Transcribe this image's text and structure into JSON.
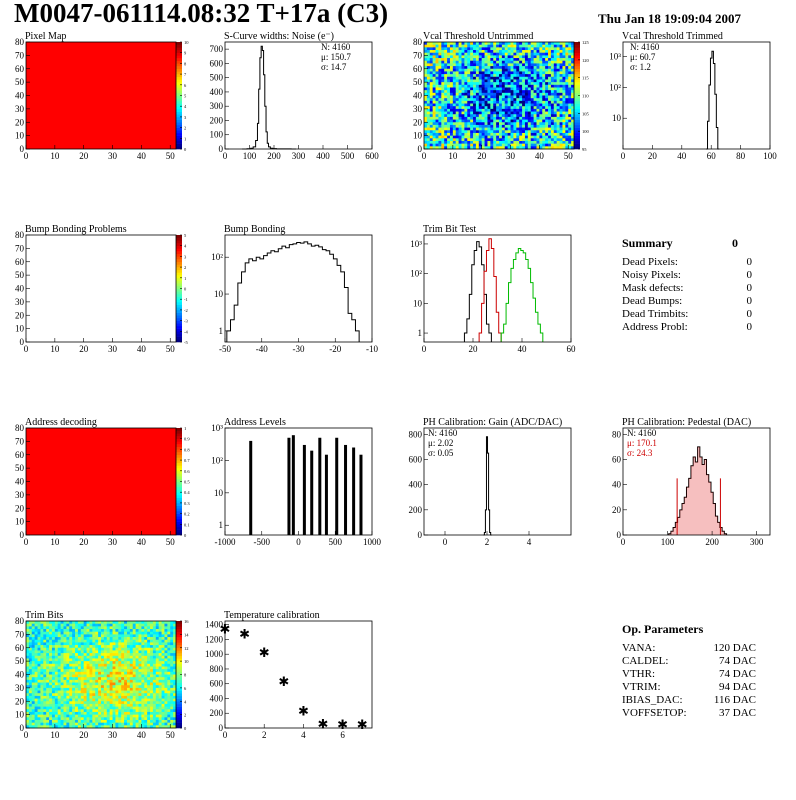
{
  "header": {
    "title": "M0047-061114.08:32 T+17a (C3)",
    "date": "Thu Jan 18 19:09:04 2007"
  },
  "chart_data": [
    {
      "id": "pixel-map",
      "type": "heatmap",
      "title": "Pixel Map",
      "pattern": "uniform",
      "fill": "#ff0000",
      "xlim": [
        0,
        52
      ],
      "ylim": [
        0,
        80
      ],
      "xticks": [
        "0",
        "10",
        "20",
        "30",
        "40",
        "50"
      ],
      "yticks": [
        "0",
        "10",
        "20",
        "30",
        "40",
        "50",
        "60",
        "70",
        "80"
      ],
      "zticks": [
        "0",
        "1",
        "2",
        "3",
        "4",
        "5",
        "6",
        "7",
        "8",
        "9",
        "10"
      ]
    },
    {
      "id": "scurve",
      "type": "histogram",
      "title": "S-Curve widths: Noise (e⁻)",
      "xlim": [
        0,
        600
      ],
      "ylim": [
        0,
        750
      ],
      "xticks": [
        "0",
        "100",
        "200",
        "300",
        "400",
        "500",
        "600"
      ],
      "yticks": [
        "0",
        "100",
        "200",
        "300",
        "400",
        "500",
        "600",
        "700"
      ],
      "stats": [
        "N: 4160",
        "μ: 150.7",
        "σ: 14.7"
      ],
      "statcolor": [
        "#000",
        "#000",
        "#000"
      ],
      "series": [
        {
          "color": "#000",
          "x": [
            80,
            100,
            110,
            120,
            130,
            135,
            140,
            145,
            150,
            155,
            160,
            165,
            170,
            175,
            180,
            190,
            200,
            220,
            260,
            280
          ],
          "values": [
            0,
            2,
            5,
            15,
            60,
            180,
            420,
            640,
            720,
            690,
            520,
            300,
            120,
            40,
            15,
            5,
            3,
            1,
            1,
            0
          ]
        }
      ]
    },
    {
      "id": "vcal-untrimmed",
      "type": "heatmap",
      "title": "Vcal Threshold Untrimmed",
      "pattern": "noise-blue",
      "xlim": [
        0,
        52
      ],
      "ylim": [
        0,
        80
      ],
      "xticks": [
        "0",
        "10",
        "20",
        "30",
        "40",
        "50"
      ],
      "yticks": [
        "0",
        "10",
        "20",
        "30",
        "40",
        "50",
        "60",
        "70",
        "80"
      ],
      "zticks": [
        "95",
        "100",
        "105",
        "110",
        "115",
        "120",
        "125"
      ]
    },
    {
      "id": "vcal-trimmed",
      "type": "histogram",
      "title": "Vcal Threshold Trimmed",
      "log": true,
      "xlim": [
        0,
        100
      ],
      "ylim": [
        1,
        3000
      ],
      "xticks": [
        "0",
        "20",
        "40",
        "60",
        "80",
        "100"
      ],
      "yticks": [
        "10",
        "10²",
        "10³"
      ],
      "yvals": [
        10,
        100,
        1000
      ],
      "stats": [
        "N: 4160",
        "μ: 60.7",
        "σ:  1.2"
      ],
      "statcolor": [
        "#000",
        "#000",
        "#000"
      ],
      "series": [
        {
          "color": "#000",
          "x": [
            57,
            58,
            59,
            60,
            61,
            62,
            63,
            64,
            65
          ],
          "values": [
            1,
            8,
            120,
            900,
            1500,
            600,
            60,
            5,
            1
          ]
        }
      ]
    },
    {
      "id": "bump-problems",
      "type": "heatmap",
      "title": "Bump Bonding Problems",
      "pattern": "blank",
      "xlim": [
        0,
        52
      ],
      "ylim": [
        0,
        80
      ],
      "xticks": [
        "0",
        "10",
        "20",
        "30",
        "40",
        "50"
      ],
      "yticks": [
        "0",
        "10",
        "20",
        "30",
        "40",
        "50",
        "60",
        "70",
        "80"
      ],
      "zticks": [
        "-5",
        "-4",
        "-3",
        "-2",
        "-1",
        "0",
        "1",
        "2",
        "3",
        "4",
        "5"
      ]
    },
    {
      "id": "bump-bonding",
      "type": "histogram",
      "title": "Bump Bonding",
      "log": true,
      "xlim": [
        -50,
        -10
      ],
      "ylim": [
        0.5,
        400
      ],
      "xticks": [
        "-50",
        "-40",
        "-30",
        "-20",
        "-10"
      ],
      "yticks": [
        "1",
        "10",
        "10²"
      ],
      "yvals": [
        1,
        10,
        100
      ],
      "stats": [],
      "statcolor": [],
      "series": [
        {
          "color": "#000",
          "x": [
            -49,
            -48,
            -47,
            -46,
            -45,
            -44,
            -43,
            -42,
            -41,
            -40,
            -39,
            -38,
            -37,
            -36,
            -35,
            -34,
            -33,
            -32,
            -31,
            -30,
            -29,
            -28,
            -27,
            -26,
            -25,
            -24,
            -23,
            -22,
            -21,
            -20,
            -19,
            -18,
            -17,
            -16,
            -15,
            -14
          ],
          "values": [
            1,
            2,
            5,
            20,
            40,
            70,
            90,
            80,
            100,
            90,
            110,
            130,
            150,
            140,
            170,
            200,
            180,
            220,
            230,
            250,
            240,
            260,
            230,
            200,
            210,
            190,
            160,
            150,
            120,
            90,
            60,
            40,
            15,
            3,
            2,
            1
          ]
        }
      ]
    },
    {
      "id": "trim-bit-test",
      "type": "histogram",
      "title": "Trim Bit Test",
      "log": true,
      "xlim": [
        0,
        60
      ],
      "ylim": [
        0.5,
        2000
      ],
      "xticks": [
        "0",
        "20",
        "40",
        "60"
      ],
      "yticks": [
        "1",
        "10",
        "10²",
        "10³"
      ],
      "yvals": [
        1,
        10,
        100,
        1000
      ],
      "stats": [],
      "statcolor": [],
      "series": [
        {
          "color": "#000",
          "x": [
            17,
            18,
            19,
            20,
            21,
            22,
            23,
            24,
            25,
            26,
            27
          ],
          "values": [
            1,
            3,
            20,
            200,
            600,
            1200,
            800,
            200,
            20,
            2,
            1
          ]
        },
        {
          "color": "#cc0000",
          "x": [
            23,
            24,
            25,
            26,
            27,
            28,
            29,
            30,
            31
          ],
          "values": [
            1,
            10,
            120,
            600,
            1500,
            700,
            80,
            5,
            1
          ]
        },
        {
          "color": "#00bb00",
          "x": [
            32,
            33,
            34,
            35,
            36,
            37,
            38,
            39,
            40,
            41,
            42,
            43,
            44,
            45,
            46,
            47,
            48
          ],
          "values": [
            1,
            2,
            10,
            50,
            150,
            300,
            500,
            700,
            600,
            500,
            300,
            150,
            50,
            15,
            5,
            2,
            1
          ]
        }
      ]
    },
    {
      "id": "address-decoding",
      "type": "heatmap",
      "title": "Address decoding",
      "pattern": "uniform",
      "fill": "#ff0000",
      "xlim": [
        0,
        52
      ],
      "ylim": [
        0,
        80
      ],
      "xticks": [
        "0",
        "10",
        "20",
        "30",
        "40",
        "50"
      ],
      "yticks": [
        "0",
        "10",
        "20",
        "30",
        "40",
        "50",
        "60",
        "70",
        "80"
      ],
      "zticks": [
        "0",
        "0.1",
        "0.2",
        "0.3",
        "0.4",
        "0.5",
        "0.6",
        "0.7",
        "0.8",
        "0.9",
        "1"
      ]
    },
    {
      "id": "address-levels",
      "type": "histogram",
      "title": "Address Levels",
      "log": true,
      "xlim": [
        -1000,
        1000
      ],
      "ylim": [
        0.5,
        1000
      ],
      "xticks": [
        "-1000",
        "-500",
        "0",
        "500",
        "1000"
      ],
      "yticks": [
        "1",
        "10",
        "10²",
        "10³"
      ],
      "yvals": [
        1,
        10,
        100,
        1000
      ],
      "stats": [],
      "statcolor": [],
      "spikes": true,
      "series": [
        {
          "color": "#000",
          "x": [
            -650,
            -130,
            -70,
            80,
            180,
            290,
            380,
            520,
            640,
            750,
            850
          ],
          "values": [
            400,
            500,
            600,
            300,
            200,
            500,
            150,
            500,
            300,
            250,
            150
          ]
        }
      ]
    },
    {
      "id": "ph-gain",
      "type": "histogram",
      "title": "PH Calibration: Gain (ADC/DAC)",
      "xlim": [
        -1,
        6
      ],
      "ylim": [
        0,
        850
      ],
      "xticks": [
        "0",
        "2",
        "4"
      ],
      "xtickvals": [
        0,
        2,
        4
      ],
      "yticks": [
        "0",
        "200",
        "400",
        "600",
        "800"
      ],
      "stats": [
        "N: 4160",
        "μ: 2.02",
        "σ: 0.05"
      ],
      "statcolor": [
        "#000",
        "#000",
        "#000"
      ],
      "series": [
        {
          "color": "#000",
          "x": [
            1.85,
            1.9,
            1.95,
            2.0,
            2.05,
            2.1,
            2.15,
            2.2
          ],
          "values": [
            0,
            20,
            200,
            780,
            650,
            200,
            20,
            0
          ]
        }
      ]
    },
    {
      "id": "ph-pedestal",
      "type": "histogram",
      "title": "PH Calibration: Pedestal (DAC)",
      "xlim": [
        0,
        330
      ],
      "ylim": [
        0,
        85
      ],
      "xticks": [
        "0",
        "100",
        "200",
        "300"
      ],
      "xtickvals": [
        0,
        100,
        200,
        300
      ],
      "yticks": [
        "0",
        "20",
        "40",
        "60",
        "80"
      ],
      "stats": [
        "N: 4160",
        "μ: 170.1",
        "σ: 24.3"
      ],
      "statcolor": [
        "#000",
        "#cc0000",
        "#cc0000"
      ],
      "fit": {
        "mean": 170.1,
        "sigma": 24.3
      },
      "series": [
        {
          "color": "#000",
          "x": [
            105,
            110,
            115,
            120,
            125,
            130,
            135,
            140,
            145,
            150,
            155,
            160,
            165,
            170,
            175,
            180,
            185,
            190,
            195,
            200,
            205,
            210,
            215,
            220,
            225,
            230
          ],
          "values": [
            1,
            3,
            6,
            10,
            14,
            20,
            25,
            30,
            38,
            45,
            55,
            62,
            58,
            70,
            62,
            56,
            60,
            48,
            42,
            34,
            25,
            15,
            10,
            6,
            3,
            1
          ]
        }
      ]
    },
    {
      "id": "trim-bits",
      "type": "heatmap",
      "title": "Trim Bits",
      "pattern": "noise-green",
      "xlim": [
        0,
        52
      ],
      "ylim": [
        0,
        80
      ],
      "xticks": [
        "0",
        "10",
        "20",
        "30",
        "40",
        "50"
      ],
      "yticks": [
        "0",
        "10",
        "20",
        "30",
        "40",
        "50",
        "60",
        "70",
        "80"
      ],
      "zticks": [
        "0",
        "2",
        "4",
        "6",
        "8",
        "10",
        "12",
        "14",
        "16"
      ]
    },
    {
      "id": "temperature",
      "type": "scatter",
      "title": "Temperature calibration",
      "xlim": [
        0,
        7.5
      ],
      "ylim": [
        0,
        1450
      ],
      "xticks": [
        "0",
        "2",
        "4",
        "6"
      ],
      "xtickvals": [
        0,
        2,
        4,
        6
      ],
      "yticks": [
        "0",
        "200",
        "400",
        "600",
        "800",
        "1000",
        "1200",
        "1400"
      ],
      "x": [
        0,
        1,
        2,
        3,
        4,
        5,
        6,
        7
      ],
      "values": [
        1350,
        1280,
        1030,
        640,
        240,
        60,
        55,
        55
      ]
    }
  ],
  "summary": {
    "title": "Summary",
    "total": "0",
    "rows": [
      {
        "label": "Dead Pixels:",
        "value": "0"
      },
      {
        "label": "Noisy Pixels:",
        "value": "0"
      },
      {
        "label": "Mask defects:",
        "value": "0"
      },
      {
        "label": "Dead Bumps:",
        "value": "0"
      },
      {
        "label": "Dead Trimbits:",
        "value": "0"
      },
      {
        "label": "Address Probl:",
        "value": "0"
      }
    ]
  },
  "op_params": {
    "title": "Op. Parameters",
    "rows": [
      {
        "label": "VANA:",
        "value": "120 DAC"
      },
      {
        "label": "CALDEL:",
        "value": "74 DAC"
      },
      {
        "label": "VTHR:",
        "value": "74 DAC"
      },
      {
        "label": "VTRIM:",
        "value": "94 DAC"
      },
      {
        "label": "IBIAS_DAC:",
        "value": "116 DAC"
      },
      {
        "label": "VOFFSETOP:",
        "value": "37 DAC"
      }
    ]
  }
}
